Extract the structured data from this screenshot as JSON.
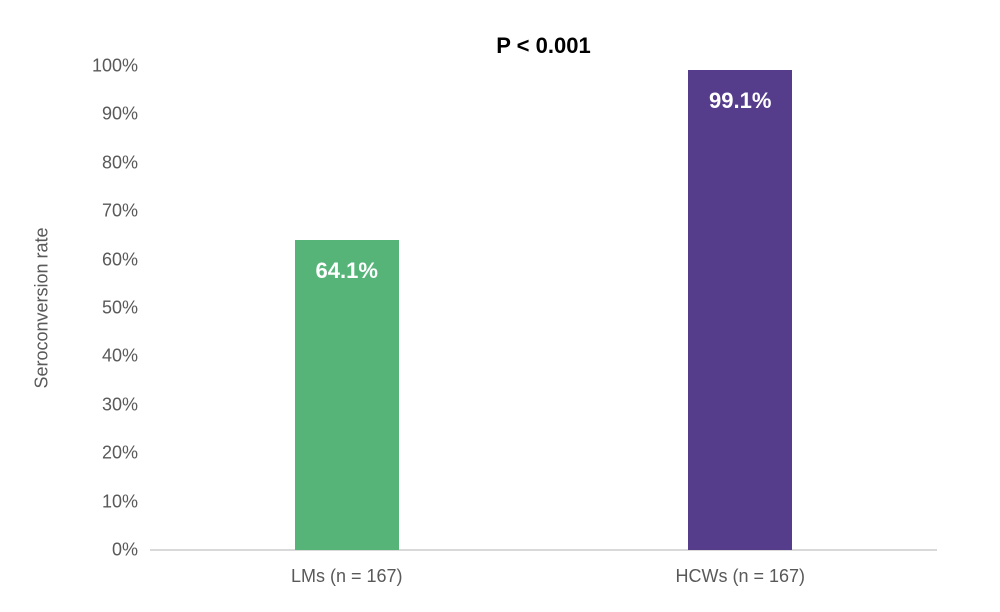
{
  "chart_data": {
    "type": "bar",
    "title": "P < 0.001",
    "ylabel": "Seroconversion rate",
    "xlabel": "",
    "categories": [
      "LMs (n = 167)",
      "HCWs (n = 167)"
    ],
    "values": [
      64.1,
      99.1
    ],
    "value_labels": [
      "64.1%",
      "99.1%"
    ],
    "bar_colors": [
      "#57B479",
      "#553D8C"
    ],
    "ylim": [
      0,
      100
    ],
    "yticks": [
      "0%",
      "10%",
      "20%",
      "30%",
      "40%",
      "50%",
      "60%",
      "70%",
      "80%",
      "90%",
      "100%"
    ],
    "grid": false,
    "legend_position": "none"
  },
  "colors": {
    "axis_line": "#D9D9D9",
    "tick_text": "#595959",
    "bar_value_text": "#FFFFFF",
    "title_text": "#000000"
  }
}
